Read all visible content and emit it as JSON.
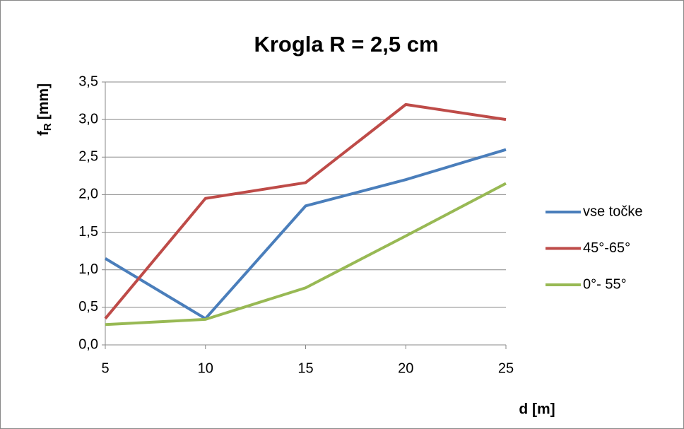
{
  "chart_data": {
    "type": "line",
    "title": "Krogla R = 2,5 cm",
    "y_label": "f",
    "y_label_sub": "R",
    "y_label_unit": "[mm]",
    "x_label": "d [m]",
    "x": [
      5,
      10,
      15,
      20,
      25
    ],
    "series": [
      {
        "name": "vse točke",
        "color": "#4a7ebb",
        "values": [
          1.15,
          0.35,
          1.85,
          2.2,
          2.6
        ]
      },
      {
        "name": "45°-65°",
        "color": "#be4b48",
        "values": [
          0.35,
          1.95,
          2.16,
          3.2,
          3.0
        ]
      },
      {
        "name": "0°- 55°",
        "color": "#98b954",
        "values": [
          0.27,
          0.34,
          0.76,
          1.45,
          2.15
        ]
      }
    ],
    "xlim": [
      5,
      25
    ],
    "xticks": [
      5,
      10,
      15,
      20,
      25
    ],
    "ylim": [
      0,
      3.5
    ],
    "yticks": [
      {
        "value": 0,
        "label": "0,0"
      },
      {
        "value": 0.5,
        "label": "0,5"
      },
      {
        "value": 1,
        "label": "1,0"
      },
      {
        "value": 1.5,
        "label": "1,5"
      },
      {
        "value": 2,
        "label": "2,0"
      },
      {
        "value": 2.5,
        "label": "2,5"
      },
      {
        "value": 3,
        "label": "3,0"
      },
      {
        "value": 3.5,
        "label": "3,5"
      }
    ],
    "grid": true,
    "legend": "right"
  }
}
